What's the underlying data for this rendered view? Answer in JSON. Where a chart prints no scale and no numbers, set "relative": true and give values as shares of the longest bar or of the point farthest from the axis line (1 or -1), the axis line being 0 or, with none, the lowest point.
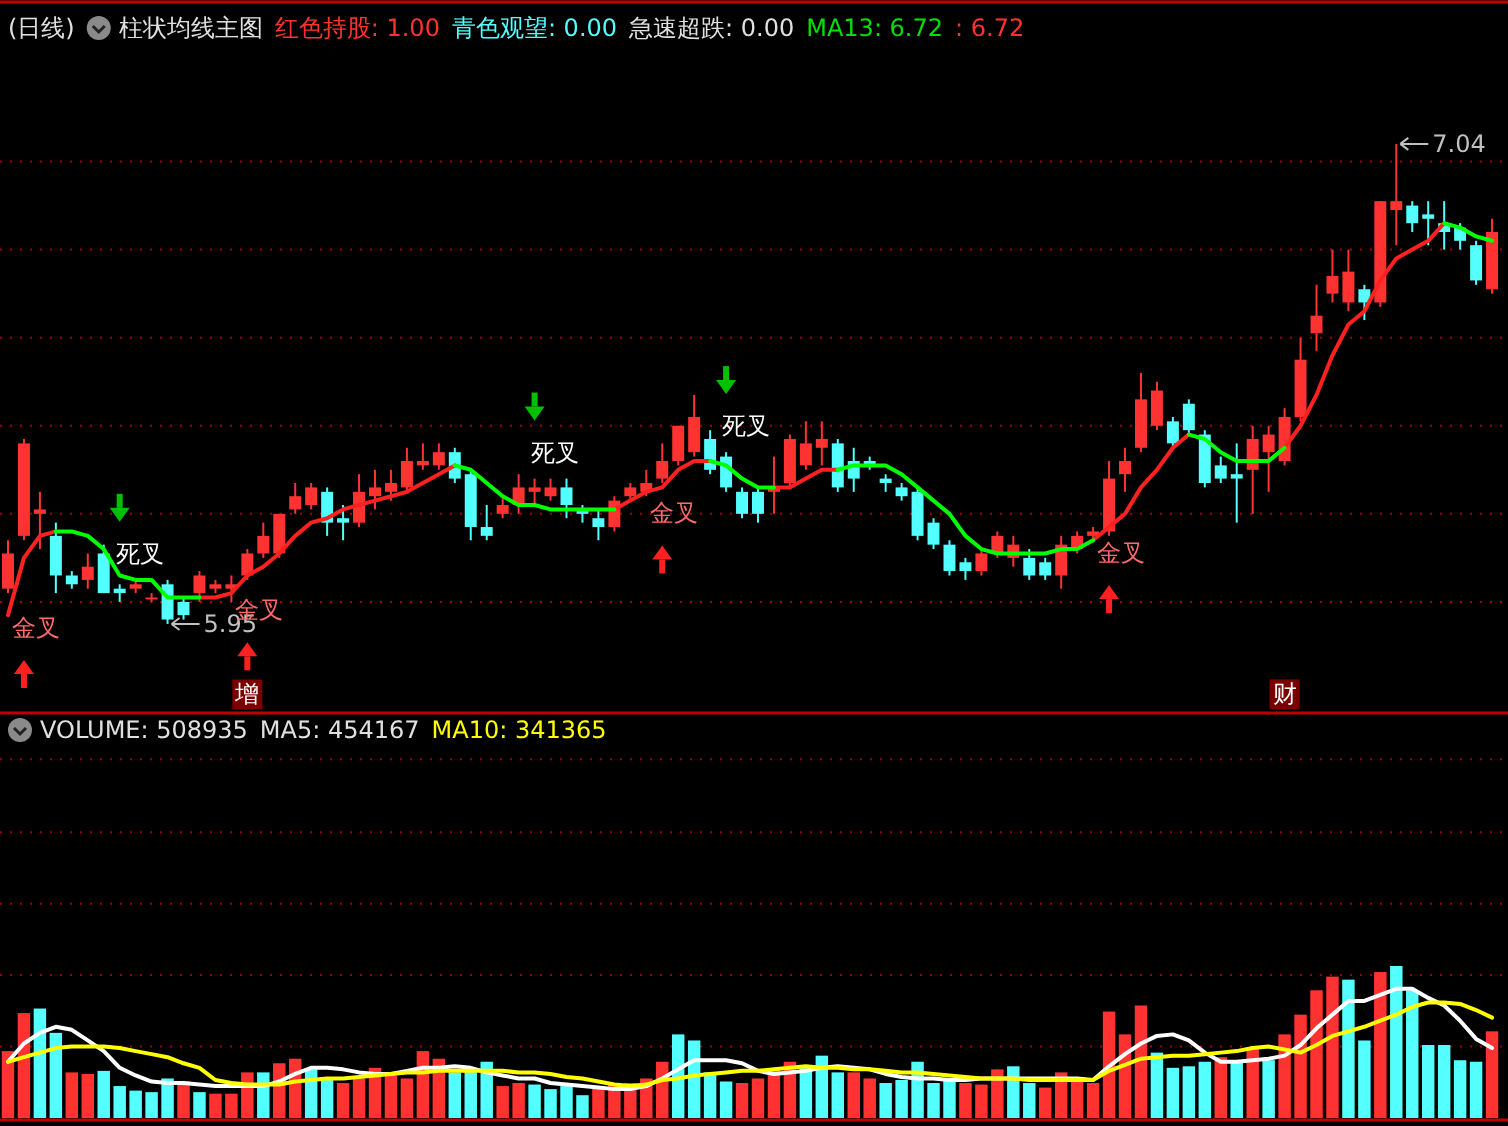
{
  "chart_data": [
    {
      "type": "candlestick",
      "title": "(日线)",
      "subtitle": "柱状均线主图",
      "categories": [
        null,
        null,
        null,
        null,
        null,
        null,
        null,
        null,
        null,
        null,
        null,
        null,
        null,
        null,
        null,
        null,
        null,
        null,
        null,
        null,
        null,
        null,
        null,
        null,
        null,
        null,
        null,
        null,
        null,
        null,
        null,
        null,
        null,
        null,
        null,
        null,
        null,
        null,
        null,
        null,
        null,
        null,
        null,
        null,
        null,
        null,
        null,
        null,
        null,
        null,
        null,
        null,
        null,
        null,
        null,
        null,
        null,
        null,
        null,
        null,
        null,
        null,
        null,
        null,
        null,
        null,
        null,
        null,
        null,
        null,
        null,
        null,
        null,
        null,
        null,
        null,
        null,
        null,
        null,
        null,
        null,
        null,
        null,
        null,
        null,
        null,
        null,
        null,
        null,
        null,
        null,
        null,
        null,
        null
      ],
      "ohlc": [
        [
          6.03,
          6.14,
          6.02,
          6.11
        ],
        [
          6.15,
          6.37,
          6.14,
          6.36
        ],
        [
          6.2,
          6.25,
          6.12,
          6.21
        ],
        [
          6.15,
          6.18,
          6.02,
          6.06
        ],
        [
          6.06,
          6.07,
          6.03,
          6.04
        ],
        [
          6.05,
          6.11,
          6.03,
          6.08
        ],
        [
          6.11,
          6.13,
          6.02,
          6.02
        ],
        [
          6.03,
          6.04,
          6.0,
          6.02
        ],
        [
          6.03,
          6.05,
          6.02,
          6.04
        ],
        [
          6.01,
          6.02,
          6.0,
          6.01
        ],
        [
          6.04,
          6.05,
          5.95,
          5.96
        ],
        [
          6.0,
          6.01,
          5.96,
          5.97
        ],
        [
          6.02,
          6.07,
          6.0,
          6.06
        ],
        [
          6.03,
          6.05,
          6.02,
          6.04
        ],
        [
          6.03,
          6.06,
          6.0,
          6.04
        ],
        [
          6.06,
          6.12,
          6.05,
          6.11
        ],
        [
          6.11,
          6.18,
          6.1,
          6.15
        ],
        [
          6.11,
          6.2,
          6.1,
          6.2
        ],
        [
          6.21,
          6.27,
          6.2,
          6.24
        ],
        [
          6.22,
          6.27,
          6.21,
          6.26
        ],
        [
          6.25,
          6.26,
          6.15,
          6.18
        ],
        [
          6.19,
          6.22,
          6.14,
          6.18
        ],
        [
          6.18,
          6.29,
          6.17,
          6.25
        ],
        [
          6.24,
          6.3,
          6.21,
          6.26
        ],
        [
          6.25,
          6.3,
          6.23,
          6.27
        ],
        [
          6.26,
          6.35,
          6.25,
          6.32
        ],
        [
          6.31,
          6.36,
          6.3,
          6.32
        ],
        [
          6.31,
          6.36,
          6.3,
          6.34
        ],
        [
          6.34,
          6.35,
          6.27,
          6.28
        ],
        [
          6.29,
          6.3,
          6.14,
          6.17
        ],
        [
          6.17,
          6.22,
          6.14,
          6.15
        ],
        [
          6.2,
          6.24,
          6.19,
          6.22
        ],
        [
          6.22,
          6.29,
          6.2,
          6.26
        ],
        [
          6.25,
          6.28,
          6.22,
          6.26
        ],
        [
          6.24,
          6.28,
          6.23,
          6.26
        ],
        [
          6.26,
          6.28,
          6.19,
          6.22
        ],
        [
          6.21,
          6.22,
          6.18,
          6.2
        ],
        [
          6.19,
          6.21,
          6.14,
          6.17
        ],
        [
          6.17,
          6.24,
          6.16,
          6.23
        ],
        [
          6.24,
          6.27,
          6.23,
          6.26
        ],
        [
          6.25,
          6.3,
          6.24,
          6.27
        ],
        [
          6.28,
          6.36,
          6.27,
          6.32
        ],
        [
          6.32,
          6.4,
          6.31,
          6.4
        ],
        [
          6.34,
          6.47,
          6.33,
          6.42
        ],
        [
          6.37,
          6.39,
          6.29,
          6.3
        ],
        [
          6.33,
          6.34,
          6.25,
          6.26
        ],
        [
          6.25,
          6.26,
          6.19,
          6.2
        ],
        [
          6.25,
          6.26,
          6.18,
          6.2
        ],
        [
          6.25,
          6.33,
          6.2,
          6.26
        ],
        [
          6.27,
          6.38,
          6.26,
          6.37
        ],
        [
          6.31,
          6.41,
          6.3,
          6.36
        ],
        [
          6.35,
          6.41,
          6.31,
          6.37
        ],
        [
          6.36,
          6.37,
          6.25,
          6.26
        ],
        [
          6.32,
          6.35,
          6.25,
          6.28
        ],
        [
          6.32,
          6.33,
          6.3,
          6.31
        ],
        [
          6.28,
          6.29,
          6.25,
          6.27
        ],
        [
          6.26,
          6.27,
          6.23,
          6.24
        ],
        [
          6.25,
          6.26,
          6.14,
          6.15
        ],
        [
          6.18,
          6.19,
          6.12,
          6.13
        ],
        [
          6.13,
          6.14,
          6.06,
          6.07
        ],
        [
          6.09,
          6.1,
          6.05,
          6.07
        ],
        [
          6.07,
          6.12,
          6.06,
          6.11
        ],
        [
          6.11,
          6.16,
          6.1,
          6.15
        ],
        [
          6.1,
          6.15,
          6.08,
          6.13
        ],
        [
          6.1,
          6.12,
          6.05,
          6.06
        ],
        [
          6.09,
          6.1,
          6.05,
          6.06
        ],
        [
          6.06,
          6.15,
          6.03,
          6.13
        ],
        [
          6.12,
          6.16,
          6.11,
          6.15
        ],
        [
          6.15,
          6.17,
          6.14,
          6.16
        ],
        [
          6.16,
          6.32,
          6.15,
          6.28
        ],
        [
          6.29,
          6.35,
          6.25,
          6.32
        ],
        [
          6.35,
          6.52,
          6.34,
          6.46
        ],
        [
          6.4,
          6.5,
          6.39,
          6.48
        ],
        [
          6.41,
          6.42,
          6.35,
          6.36
        ],
        [
          6.45,
          6.46,
          6.38,
          6.39
        ],
        [
          6.38,
          6.39,
          6.26,
          6.27
        ],
        [
          6.31,
          6.33,
          6.27,
          6.28
        ],
        [
          6.29,
          6.36,
          6.18,
          6.28
        ],
        [
          6.3,
          6.4,
          6.2,
          6.37
        ],
        [
          6.34,
          6.4,
          6.25,
          6.38
        ],
        [
          6.32,
          6.44,
          6.31,
          6.42
        ],
        [
          6.42,
          6.6,
          6.41,
          6.55
        ],
        [
          6.61,
          6.72,
          6.57,
          6.65
        ],
        [
          6.7,
          6.8,
          6.68,
          6.74
        ],
        [
          6.68,
          6.8,
          6.66,
          6.75
        ],
        [
          6.71,
          6.72,
          6.64,
          6.68
        ],
        [
          6.68,
          6.91,
          6.67,
          6.91
        ],
        [
          6.89,
          7.04,
          6.81,
          6.91
        ],
        [
          6.9,
          6.91,
          6.84,
          6.86
        ],
        [
          6.88,
          6.91,
          6.81,
          6.87
        ],
        [
          6.86,
          6.91,
          6.8,
          6.84
        ],
        [
          6.85,
          6.86,
          6.8,
          6.82
        ],
        [
          6.81,
          6.82,
          6.72,
          6.73
        ],
        [
          6.71,
          6.87,
          6.7,
          6.84
        ]
      ],
      "value_labels": [
        null,
        null,
        null,
        null,
        null,
        null,
        null,
        null,
        null,
        null,
        "5.95",
        null,
        null,
        null,
        null,
        null,
        null,
        null,
        null,
        null,
        null,
        null,
        null,
        null,
        null,
        null,
        null,
        null,
        null,
        null,
        null,
        null,
        null,
        null,
        null,
        null,
        null,
        null,
        null,
        null,
        null,
        null,
        null,
        null,
        null,
        null,
        null,
        null,
        null,
        null,
        null,
        null,
        null,
        null,
        null,
        null,
        null,
        null,
        null,
        null,
        null,
        null,
        null,
        null,
        null,
        null,
        null,
        null,
        null,
        null,
        null,
        null,
        null,
        null,
        null,
        null,
        null,
        null,
        null,
        null,
        null,
        null,
        null,
        null,
        null,
        null,
        null,
        "7.04",
        null,
        null,
        null,
        null,
        null,
        null
      ],
      "colors": [
        "#ff3232",
        "#ff3232",
        "#ff3232",
        "#54ffff",
        "#54ffff",
        "#ff3232",
        "#54ffff",
        "#54ffff",
        "#ff3232",
        "#ff3232",
        "#54ffff",
        "#54ffff",
        "#ff3232",
        "#ff3232",
        "#ff3232",
        "#ff3232",
        "#ff3232",
        "#ff3232",
        "#ff3232",
        "#ff3232",
        "#54ffff",
        "#54ffff",
        "#ff3232",
        "#ff3232",
        "#ff3232",
        "#ff3232",
        "#ff3232",
        "#ff3232",
        "#54ffff",
        "#54ffff",
        "#54ffff",
        "#ff3232",
        "#ff3232",
        "#ff3232",
        "#ff3232",
        "#54ffff",
        "#54ffff",
        "#54ffff",
        "#ff3232",
        "#ff3232",
        "#ff3232",
        "#ff3232",
        "#ff3232",
        "#ff3232",
        "#54ffff",
        "#54ffff",
        "#54ffff",
        "#54ffff",
        "#ff3232",
        "#ff3232",
        "#ff3232",
        "#ff3232",
        "#54ffff",
        "#54ffff",
        "#54ffff",
        "#54ffff",
        "#54ffff",
        "#54ffff",
        "#54ffff",
        "#54ffff",
        "#54ffff",
        "#ff3232",
        "#ff3232",
        "#ff3232",
        "#54ffff",
        "#54ffff",
        "#ff3232",
        "#ff3232",
        "#ff3232",
        "#ff3232",
        "#ff3232",
        "#ff3232",
        "#ff3232",
        "#54ffff",
        "#54ffff",
        "#54ffff",
        "#54ffff",
        "#54ffff",
        "#ff3232",
        "#ff3232",
        "#ff3232",
        "#ff3232",
        "#ff3232",
        "#ff3232",
        "#ff3232",
        "#54ffff",
        "#ff3232",
        "#ff3232",
        "#54ffff",
        "#54ffff",
        "#54ffff",
        "#54ffff",
        "#54ffff",
        "#ff3232"
      ],
      "ylim": [
        5.75,
        7.36
      ],
      "yticks": [
        {
          "value": 6.0,
          "label": null
        },
        {
          "value": 6.2,
          "label": null
        },
        {
          "value": 6.4,
          "label": null
        },
        {
          "value": 6.6,
          "label": null
        },
        {
          "value": 6.8,
          "label": null
        },
        {
          "value": 7.0,
          "label": null
        }
      ],
      "grid": "y",
      "series": [
        {
          "type": "line",
          "color": "#ff2020",
          "values": [
            5.97,
            6.1,
            6.15,
            6.16,
            null,
            null,
            null,
            null,
            null,
            null,
            null,
            null,
            6.01,
            6.01,
            6.02,
            6.06,
            6.08,
            6.11,
            6.15,
            6.18,
            6.19,
            6.21,
            6.22,
            6.23,
            6.24,
            6.25,
            6.27,
            6.29,
            6.31,
            null,
            null,
            null,
            null,
            null,
            null,
            null,
            null,
            null,
            6.21,
            6.23,
            6.25,
            6.26,
            6.3,
            6.32,
            6.32,
            null,
            null,
            null,
            6.26,
            6.26,
            6.28,
            6.3,
            6.3,
            null,
            null,
            null,
            null,
            null,
            null,
            null,
            null,
            null,
            null,
            null,
            null,
            null,
            null,
            null,
            6.14,
            6.17,
            6.2,
            6.26,
            6.3,
            6.35,
            6.38,
            null,
            null,
            null,
            null,
            null,
            6.35,
            6.4,
            6.47,
            6.56,
            6.63,
            6.66,
            6.73,
            6.78,
            6.8,
            6.82,
            6.86,
            null,
            null,
            null
          ]
        },
        {
          "type": "line",
          "color": "#00ff00",
          "values": [
            null,
            null,
            null,
            6.16,
            6.16,
            6.15,
            6.12,
            6.06,
            6.05,
            6.05,
            6.01,
            6.01,
            6.01,
            null,
            null,
            null,
            null,
            null,
            null,
            null,
            null,
            null,
            null,
            null,
            null,
            null,
            null,
            null,
            6.31,
            6.3,
            6.27,
            6.24,
            6.22,
            6.22,
            6.21,
            6.21,
            6.21,
            6.21,
            6.21,
            null,
            null,
            null,
            null,
            null,
            6.32,
            6.31,
            6.28,
            6.26,
            6.26,
            null,
            null,
            null,
            6.3,
            6.31,
            6.31,
            6.31,
            6.29,
            6.26,
            6.23,
            6.2,
            6.15,
            6.12,
            6.11,
            6.11,
            6.11,
            6.11,
            6.12,
            6.12,
            6.14,
            null,
            null,
            null,
            null,
            null,
            6.38,
            6.37,
            6.34,
            6.32,
            6.32,
            6.32,
            6.35,
            null,
            null,
            null,
            null,
            null,
            null,
            null,
            null,
            null,
            6.86,
            6.85,
            6.83,
            6.82
          ]
        },
        {
          "type": "scatter",
          "marker": "triangle",
          "color": "#ff2020",
          "values": [
            null,
            5.85,
            null,
            null,
            null,
            null,
            null,
            null,
            null,
            null,
            null,
            null,
            null,
            null,
            null,
            5.89,
            null,
            null,
            null,
            null,
            null,
            null,
            null,
            null,
            null,
            null,
            null,
            null,
            null,
            null,
            null,
            null,
            null,
            null,
            null,
            null,
            null,
            null,
            null,
            null,
            null,
            6.11,
            null,
            null,
            null,
            null,
            null,
            null,
            null,
            null,
            null,
            null,
            null,
            null,
            null,
            null,
            null,
            null,
            null,
            null,
            null,
            null,
            null,
            null,
            null,
            null,
            null,
            null,
            null,
            6.02,
            null,
            null,
            null,
            null,
            null,
            null,
            null,
            null,
            null,
            null,
            null,
            null,
            null,
            null,
            null,
            null,
            null,
            null,
            null,
            null,
            null,
            null,
            null,
            null
          ],
          "value_labels": [
            null,
            "金叉",
            null,
            null,
            null,
            null,
            null,
            null,
            null,
            null,
            null,
            null,
            null,
            null,
            null,
            "金叉",
            null,
            null,
            null,
            null,
            null,
            null,
            null,
            null,
            null,
            null,
            null,
            null,
            null,
            null,
            null,
            null,
            null,
            null,
            null,
            null,
            null,
            null,
            null,
            null,
            null,
            "金叉",
            null,
            null,
            null,
            null,
            null,
            null,
            null,
            null,
            null,
            null,
            null,
            null,
            null,
            null,
            null,
            null,
            null,
            null,
            null,
            null,
            null,
            null,
            null,
            null,
            null,
            null,
            null,
            "金叉",
            null,
            null,
            null,
            null,
            null,
            null,
            null,
            null,
            null,
            null,
            null,
            null,
            null,
            null,
            null,
            null,
            null,
            null,
            null,
            null,
            null,
            null,
            null,
            null
          ]
        },
        {
          "type": "scatter",
          "marker": "triangle-down",
          "color": "#00c000",
          "values": [
            null,
            null,
            null,
            null,
            null,
            null,
            null,
            6.2,
            null,
            null,
            null,
            null,
            null,
            null,
            null,
            null,
            null,
            null,
            null,
            null,
            null,
            null,
            null,
            null,
            null,
            null,
            null,
            null,
            null,
            null,
            null,
            null,
            null,
            6.43,
            null,
            null,
            null,
            null,
            null,
            null,
            null,
            null,
            null,
            null,
            null,
            6.49,
            null,
            null,
            null,
            null,
            null,
            null,
            null,
            null,
            null,
            null,
            null,
            null,
            null,
            null,
            null,
            null,
            null,
            null,
            null,
            null,
            null,
            null,
            null,
            null,
            null,
            null,
            null,
            null,
            null,
            null,
            null,
            null,
            null,
            null,
            null,
            null,
            null,
            null,
            null,
            null,
            null,
            null,
            null,
            null,
            null,
            null,
            null,
            null
          ],
          "value_labels": [
            null,
            null,
            null,
            null,
            null,
            null,
            null,
            "死叉",
            null,
            null,
            null,
            null,
            null,
            null,
            null,
            null,
            null,
            null,
            null,
            null,
            null,
            null,
            null,
            null,
            null,
            null,
            null,
            null,
            null,
            null,
            null,
            null,
            null,
            "死叉",
            null,
            null,
            null,
            null,
            null,
            null,
            null,
            null,
            null,
            null,
            null,
            "死叉",
            null,
            null,
            null,
            null,
            null,
            null,
            null,
            null,
            null,
            null,
            null,
            null,
            null,
            null,
            null,
            null,
            null,
            null,
            null,
            null,
            null,
            null,
            null,
            null,
            null,
            null,
            null,
            null,
            null,
            null,
            null,
            null,
            null,
            null,
            null,
            null,
            null,
            null,
            null,
            null,
            null,
            null,
            null,
            null,
            null,
            null,
            null,
            null
          ]
        },
        {
          "type": "scatter",
          "marker": "square",
          "color": "#7a0000",
          "values": [
            null,
            null,
            null,
            null,
            null,
            null,
            null,
            null,
            null,
            null,
            null,
            null,
            null,
            null,
            null,
            5.79,
            null,
            null,
            null,
            null,
            null,
            null,
            null,
            null,
            null,
            null,
            null,
            null,
            null,
            null,
            null,
            null,
            null,
            null,
            null,
            null,
            null,
            null,
            null,
            null,
            null,
            null,
            null,
            null,
            null,
            null,
            null,
            null,
            null,
            null,
            null,
            null,
            null,
            null,
            null,
            null,
            null,
            null,
            null,
            null,
            null,
            null,
            null,
            null,
            null,
            null,
            null,
            null,
            null,
            null,
            null,
            null,
            null,
            null,
            null,
            null,
            null,
            null,
            null,
            null,
            5.79,
            null,
            null,
            null,
            null,
            null,
            null,
            null,
            null,
            null,
            null,
            null,
            null,
            null
          ],
          "value_labels": [
            null,
            null,
            null,
            null,
            null,
            null,
            null,
            null,
            null,
            null,
            null,
            null,
            null,
            null,
            null,
            "增",
            null,
            null,
            null,
            null,
            null,
            null,
            null,
            null,
            null,
            null,
            null,
            null,
            null,
            null,
            null,
            null,
            null,
            null,
            null,
            null,
            null,
            null,
            null,
            null,
            null,
            null,
            null,
            null,
            null,
            null,
            null,
            null,
            null,
            null,
            null,
            null,
            null,
            null,
            null,
            null,
            null,
            null,
            null,
            null,
            null,
            null,
            null,
            null,
            null,
            null,
            null,
            null,
            null,
            null,
            null,
            null,
            null,
            null,
            null,
            null,
            null,
            null,
            null,
            null,
            "财",
            null,
            null,
            null,
            null,
            null,
            null,
            null,
            null,
            null,
            null,
            null,
            null,
            null
          ]
        }
      ],
      "annotations": [
        "红色持股: 1.00",
        "青色观望: 0.00",
        "急速超跌: 0.00",
        "MA13: 6.72",
        ": 6.72"
      ]
    },
    {
      "type": "bar",
      "relative": true,
      "ref_lines": [
        {
          "axis": "y",
          "value": 0.47,
          "color": "#a00000",
          "line_style": "dotted"
        },
        {
          "axis": "y",
          "value": 0.94,
          "color": "#a00000",
          "line_style": "dotted"
        },
        {
          "axis": "y",
          "value": 1.41,
          "color": "#a00000",
          "line_style": "dotted"
        },
        {
          "axis": "y",
          "value": 1.88,
          "color": "#a00000",
          "line_style": "dotted"
        },
        {
          "axis": "y",
          "value": 2.36,
          "color": "#a00000",
          "line_style": "dotted"
        }
      ],
      "categories": [
        null,
        null,
        null,
        null,
        null,
        null,
        null,
        null,
        null,
        null,
        null,
        null,
        null,
        null,
        null,
        null,
        null,
        null,
        null,
        null,
        null,
        null,
        null,
        null,
        null,
        null,
        null,
        null,
        null,
        null,
        null,
        null,
        null,
        null,
        null,
        null,
        null,
        null,
        null,
        null,
        null,
        null,
        null,
        null,
        null,
        null,
        null,
        null,
        null,
        null,
        null,
        null,
        null,
        null,
        null,
        null,
        null,
        null,
        null,
        null,
        null,
        null,
        null,
        null,
        null,
        null,
        null,
        null,
        null,
        null,
        null,
        null,
        null,
        null,
        null,
        null,
        null,
        null,
        null,
        null,
        null,
        null,
        null,
        null,
        null,
        null,
        null,
        null,
        null,
        null,
        null,
        null,
        null,
        null
      ],
      "series": [
        {
          "type": "bar",
          "values": [
            0.44,
            0.69,
            0.72,
            0.56,
            0.3,
            0.29,
            0.31,
            0.21,
            0.18,
            0.17,
            0.26,
            0.24,
            0.17,
            0.16,
            0.16,
            0.3,
            0.3,
            0.36,
            0.39,
            0.32,
            0.25,
            0.23,
            0.26,
            0.33,
            0.28,
            0.26,
            0.44,
            0.39,
            0.3,
            0.33,
            0.37,
            0.21,
            0.23,
            0.22,
            0.19,
            0.21,
            0.15,
            0.2,
            0.22,
            0.23,
            0.26,
            0.37,
            0.55,
            0.51,
            0.3,
            0.24,
            0.23,
            0.26,
            0.32,
            0.37,
            0.33,
            0.41,
            0.3,
            0.3,
            0.26,
            0.23,
            0.25,
            0.37,
            0.23,
            0.25,
            0.23,
            0.22,
            0.32,
            0.34,
            0.23,
            0.2,
            0.3,
            0.26,
            0.23,
            0.7,
            0.55,
            0.74,
            0.43,
            0.33,
            0.34,
            0.37,
            0.4,
            0.37,
            0.46,
            0.38,
            0.55,
            0.68,
            0.84,
            0.93,
            0.91,
            0.51,
            0.96,
            1,
            0.84,
            0.48,
            0.48,
            0.38,
            0.37,
            0.57
          ],
          "colors": [
            "#ff3232",
            "#ff3232",
            "#54ffff",
            "#54ffff",
            "#ff3232",
            "#ff3232",
            "#54ffff",
            "#54ffff",
            "#54ffff",
            "#54ffff",
            "#54ffff",
            "#ff3232",
            "#54ffff",
            "#ff3232",
            "#ff3232",
            "#ff3232",
            "#54ffff",
            "#ff3232",
            "#ff3232",
            "#54ffff",
            "#54ffff",
            "#ff3232",
            "#ff3232",
            "#ff3232",
            "#ff3232",
            "#ff3232",
            "#ff3232",
            "#ff3232",
            "#54ffff",
            "#54ffff",
            "#54ffff",
            "#ff3232",
            "#ff3232",
            "#54ffff",
            "#54ffff",
            "#54ffff",
            "#54ffff",
            "#ff3232",
            "#ff3232",
            "#ff3232",
            "#ff3232",
            "#ff3232",
            "#54ffff",
            "#54ffff",
            "#54ffff",
            "#54ffff",
            "#ff3232",
            "#ff3232",
            "#ff3232",
            "#ff3232",
            "#54ffff",
            "#54ffff",
            "#54ffff",
            "#ff3232",
            "#ff3232",
            "#54ffff",
            "#54ffff",
            "#54ffff",
            "#54ffff",
            "#54ffff",
            "#ff3232",
            "#ff3232",
            "#ff3232",
            "#54ffff",
            "#54ffff",
            "#ff3232",
            "#ff3232",
            "#ff3232",
            "#ff3232",
            "#ff3232",
            "#ff3232",
            "#ff3232",
            "#54ffff",
            "#54ffff",
            "#54ffff",
            "#54ffff",
            "#ff3232",
            "#54ffff",
            "#ff3232",
            "#54ffff",
            "#ff3232",
            "#ff3232",
            "#ff3232",
            "#ff3232",
            "#54ffff",
            "#54ffff",
            "#ff3232",
            "#54ffff",
            "#54ffff",
            "#54ffff",
            "#54ffff",
            "#54ffff",
            "#54ffff",
            "#ff3232"
          ]
        },
        {
          "type": "line",
          "color": "#ffffff",
          "values": [
            0.37,
            0.49,
            0.56,
            0.6,
            0.58,
            0.51,
            0.44,
            0.33,
            0.28,
            0.24,
            0.23,
            0.23,
            0.22,
            0.21,
            0.21,
            0.21,
            0.21,
            0.24,
            0.29,
            0.33,
            0.33,
            0.32,
            0.3,
            0.29,
            0.29,
            0.31,
            0.33,
            0.33,
            0.34,
            0.33,
            0.3,
            0.28,
            0.26,
            0.26,
            0.23,
            0.22,
            0.21,
            0.2,
            0.19,
            0.19,
            0.21,
            0.26,
            0.32,
            0.38,
            0.38,
            0.38,
            0.36,
            0.31,
            0.29,
            0.3,
            0.31,
            0.33,
            0.34,
            0.33,
            0.32,
            0.29,
            0.27,
            0.26,
            0.26,
            0.25,
            0.25,
            0.26,
            0.26,
            0.26,
            0.26,
            0.26,
            0.26,
            0.26,
            0.25,
            0.34,
            0.42,
            0.49,
            0.54,
            0.55,
            0.51,
            0.43,
            0.37,
            0.37,
            0.38,
            0.39,
            0.41,
            0.48,
            0.59,
            0.68,
            0.77,
            0.77,
            0.81,
            0.85,
            0.85,
            0.79,
            0.74,
            0.64,
            0.52,
            0.46
          ]
        },
        {
          "type": "line",
          "color": "#ffff00",
          "values": [
            0.37,
            0.4,
            0.43,
            0.46,
            0.47,
            0.47,
            0.47,
            0.46,
            0.44,
            0.42,
            0.4,
            0.36,
            0.33,
            0.25,
            0.23,
            0.22,
            0.22,
            0.22,
            0.24,
            0.25,
            0.26,
            0.26,
            0.27,
            0.28,
            0.29,
            0.3,
            0.3,
            0.31,
            0.31,
            0.31,
            0.31,
            0.31,
            0.3,
            0.3,
            0.29,
            0.27,
            0.26,
            0.24,
            0.22,
            0.21,
            0.22,
            0.25,
            0.26,
            0.28,
            0.29,
            0.3,
            0.31,
            0.31,
            0.32,
            0.33,
            0.34,
            0.33,
            0.33,
            0.32,
            0.32,
            0.31,
            0.3,
            0.3,
            0.29,
            0.28,
            0.27,
            0.26,
            0.26,
            0.26,
            0.25,
            0.25,
            0.25,
            0.25,
            0.25,
            0.31,
            0.35,
            0.39,
            0.4,
            0.41,
            0.41,
            0.42,
            0.43,
            0.44,
            0.46,
            0.47,
            0.45,
            0.43,
            0.48,
            0.54,
            0.57,
            0.6,
            0.64,
            0.68,
            0.73,
            0.76,
            0.76,
            0.75,
            0.71,
            0.66
          ]
        }
      ],
      "annotations": [
        "VOLUME: 508935",
        "MA5: 454167",
        "MA10: 341365"
      ]
    }
  ]
}
